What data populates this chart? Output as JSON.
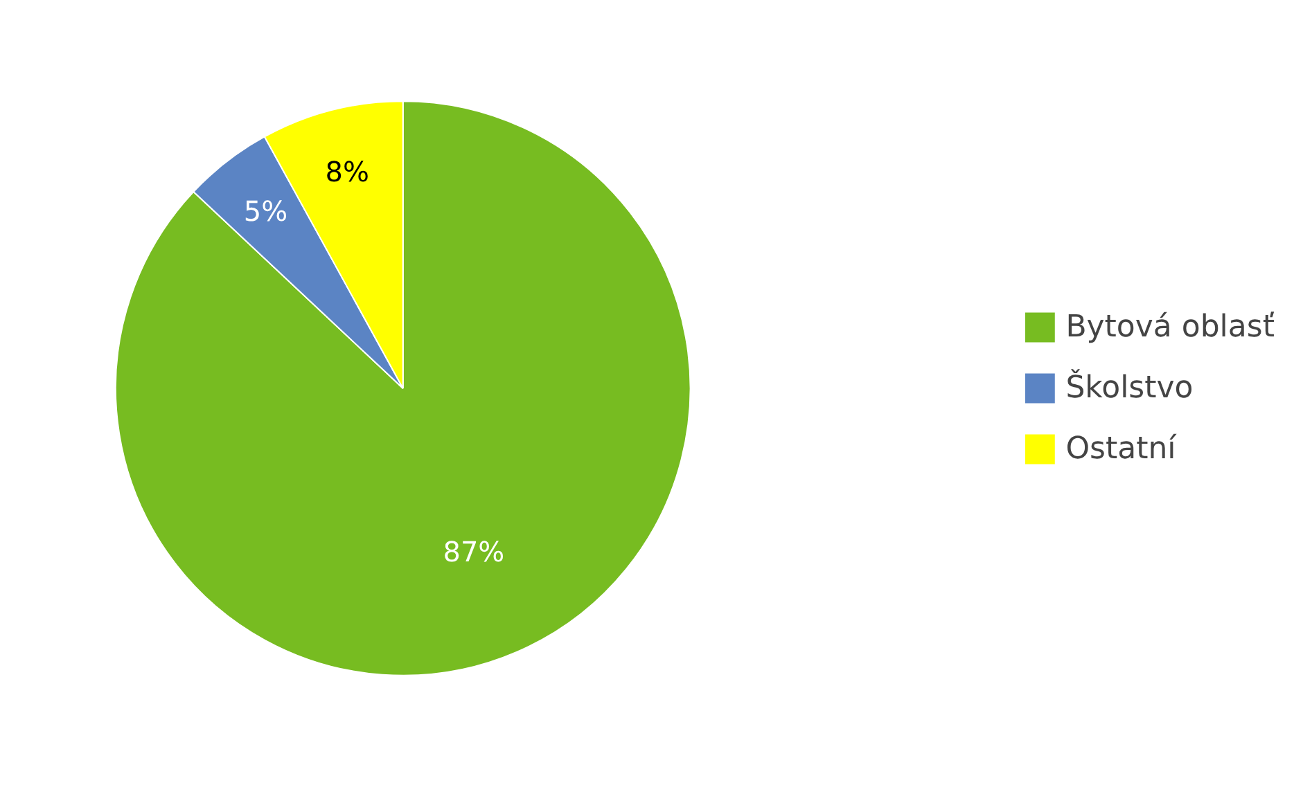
{
  "chart_data": {
    "type": "pie",
    "categories": [
      "Bytová oblasť",
      "Školstvo",
      "Ostatní"
    ],
    "values": [
      87,
      5,
      8
    ],
    "colors": [
      "#77bc21",
      "#5b84c4",
      "#ffff00"
    ],
    "value_labels": [
      "87%",
      "5%",
      "8%"
    ],
    "legend": "right"
  }
}
